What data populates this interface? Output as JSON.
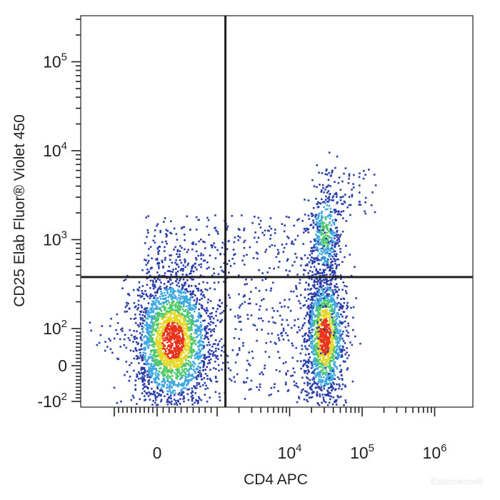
{
  "chart_data": {
    "type": "scatter",
    "subtype": "flow-cytometry density dot plot",
    "xlabel": "CD4 APC",
    "ylabel": "CD25 Elab Fluor® Violet 450",
    "x_scale": "biexponential",
    "y_scale": "biexponential",
    "x_ticks": [
      {
        "value": 0,
        "label": "0"
      },
      {
        "value": 10000,
        "label": "10",
        "sup": "4"
      },
      {
        "value": 100000,
        "label": "10",
        "sup": "5"
      },
      {
        "value": 1000000,
        "label": "10",
        "sup": "6"
      }
    ],
    "y_ticks": [
      {
        "value": -100,
        "label": "-10",
        "sup": "2"
      },
      {
        "value": 0,
        "label": "0"
      },
      {
        "value": 100,
        "label": "10",
        "sup": "2"
      },
      {
        "value": 1000,
        "label": "10",
        "sup": "3"
      },
      {
        "value": 10000,
        "label": "10",
        "sup": "4"
      },
      {
        "value": 100000,
        "label": "10",
        "sup": "5"
      }
    ],
    "gates": {
      "x_threshold": 1300,
      "y_threshold": 380
    },
    "populations": [
      {
        "x_center": 250,
        "y_center": 70,
        "density": "high",
        "quadrant": "lower-left"
      },
      {
        "x_center": 30000,
        "y_center": 80,
        "density": "high",
        "quadrant": "lower-right"
      },
      {
        "x_center": 30000,
        "y_center": 1200,
        "density": "medium",
        "quadrant": "upper-right"
      }
    ],
    "density_colors": [
      "#2b3ea8",
      "#3fa8e0",
      "#4fc96a",
      "#e6d82a",
      "#e8321c"
    ],
    "grid": false,
    "legend": "none"
  },
  "watermark": "Elabscience®"
}
